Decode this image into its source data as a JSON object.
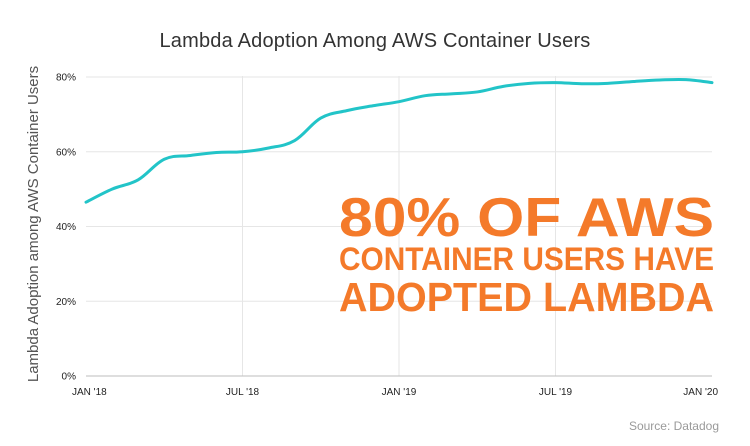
{
  "chart_data": {
    "type": "line",
    "title": "Lambda Adoption Among AWS Container Users",
    "xlabel": "",
    "ylabel": "Lambda Adoption among AWS Container Users",
    "x_ticks": [
      "JAN '18",
      "JUL '18",
      "JAN '19",
      "JUL '19",
      "JAN '20"
    ],
    "y_ticks": [
      "0%",
      "20%",
      "40%",
      "60%",
      "80%"
    ],
    "ylim": [
      0,
      80
    ],
    "x_start": "2018-01",
    "x_end": "2020-01",
    "grid": {
      "vertical": true,
      "horizontal": true
    },
    "series": [
      {
        "name": "",
        "color": "#22c4c8",
        "points": [
          {
            "x": "2018-01",
            "y": 46.5
          },
          {
            "x": "2018-02",
            "y": 50
          },
          {
            "x": "2018-03",
            "y": 52.5
          },
          {
            "x": "2018-04",
            "y": 58
          },
          {
            "x": "2018-05",
            "y": 59
          },
          {
            "x": "2018-06",
            "y": 59.8
          },
          {
            "x": "2018-07",
            "y": 60
          },
          {
            "x": "2018-08",
            "y": 61
          },
          {
            "x": "2018-09",
            "y": 63
          },
          {
            "x": "2018-10",
            "y": 69
          },
          {
            "x": "2018-11",
            "y": 71
          },
          {
            "x": "2018-12",
            "y": 72.3
          },
          {
            "x": "2019-01",
            "y": 73.4
          },
          {
            "x": "2019-02",
            "y": 75
          },
          {
            "x": "2019-03",
            "y": 75.5
          },
          {
            "x": "2019-04",
            "y": 76
          },
          {
            "x": "2019-05",
            "y": 77.5
          },
          {
            "x": "2019-06",
            "y": 78.3
          },
          {
            "x": "2019-07",
            "y": 78.5
          },
          {
            "x": "2019-08",
            "y": 78.2
          },
          {
            "x": "2019-09",
            "y": 78.3
          },
          {
            "x": "2019-10",
            "y": 78.8
          },
          {
            "x": "2019-11",
            "y": 79.2
          },
          {
            "x": "2019-12",
            "y": 79.3
          },
          {
            "x": "2020-01",
            "y": 78.5
          }
        ]
      }
    ],
    "annotations": [
      "80% OF AWS",
      "CONTAINER USERS HAVE",
      "ADOPTED LAMBDA"
    ],
    "annotation_color": "#f47a2a",
    "source": "Source: Datadog"
  }
}
